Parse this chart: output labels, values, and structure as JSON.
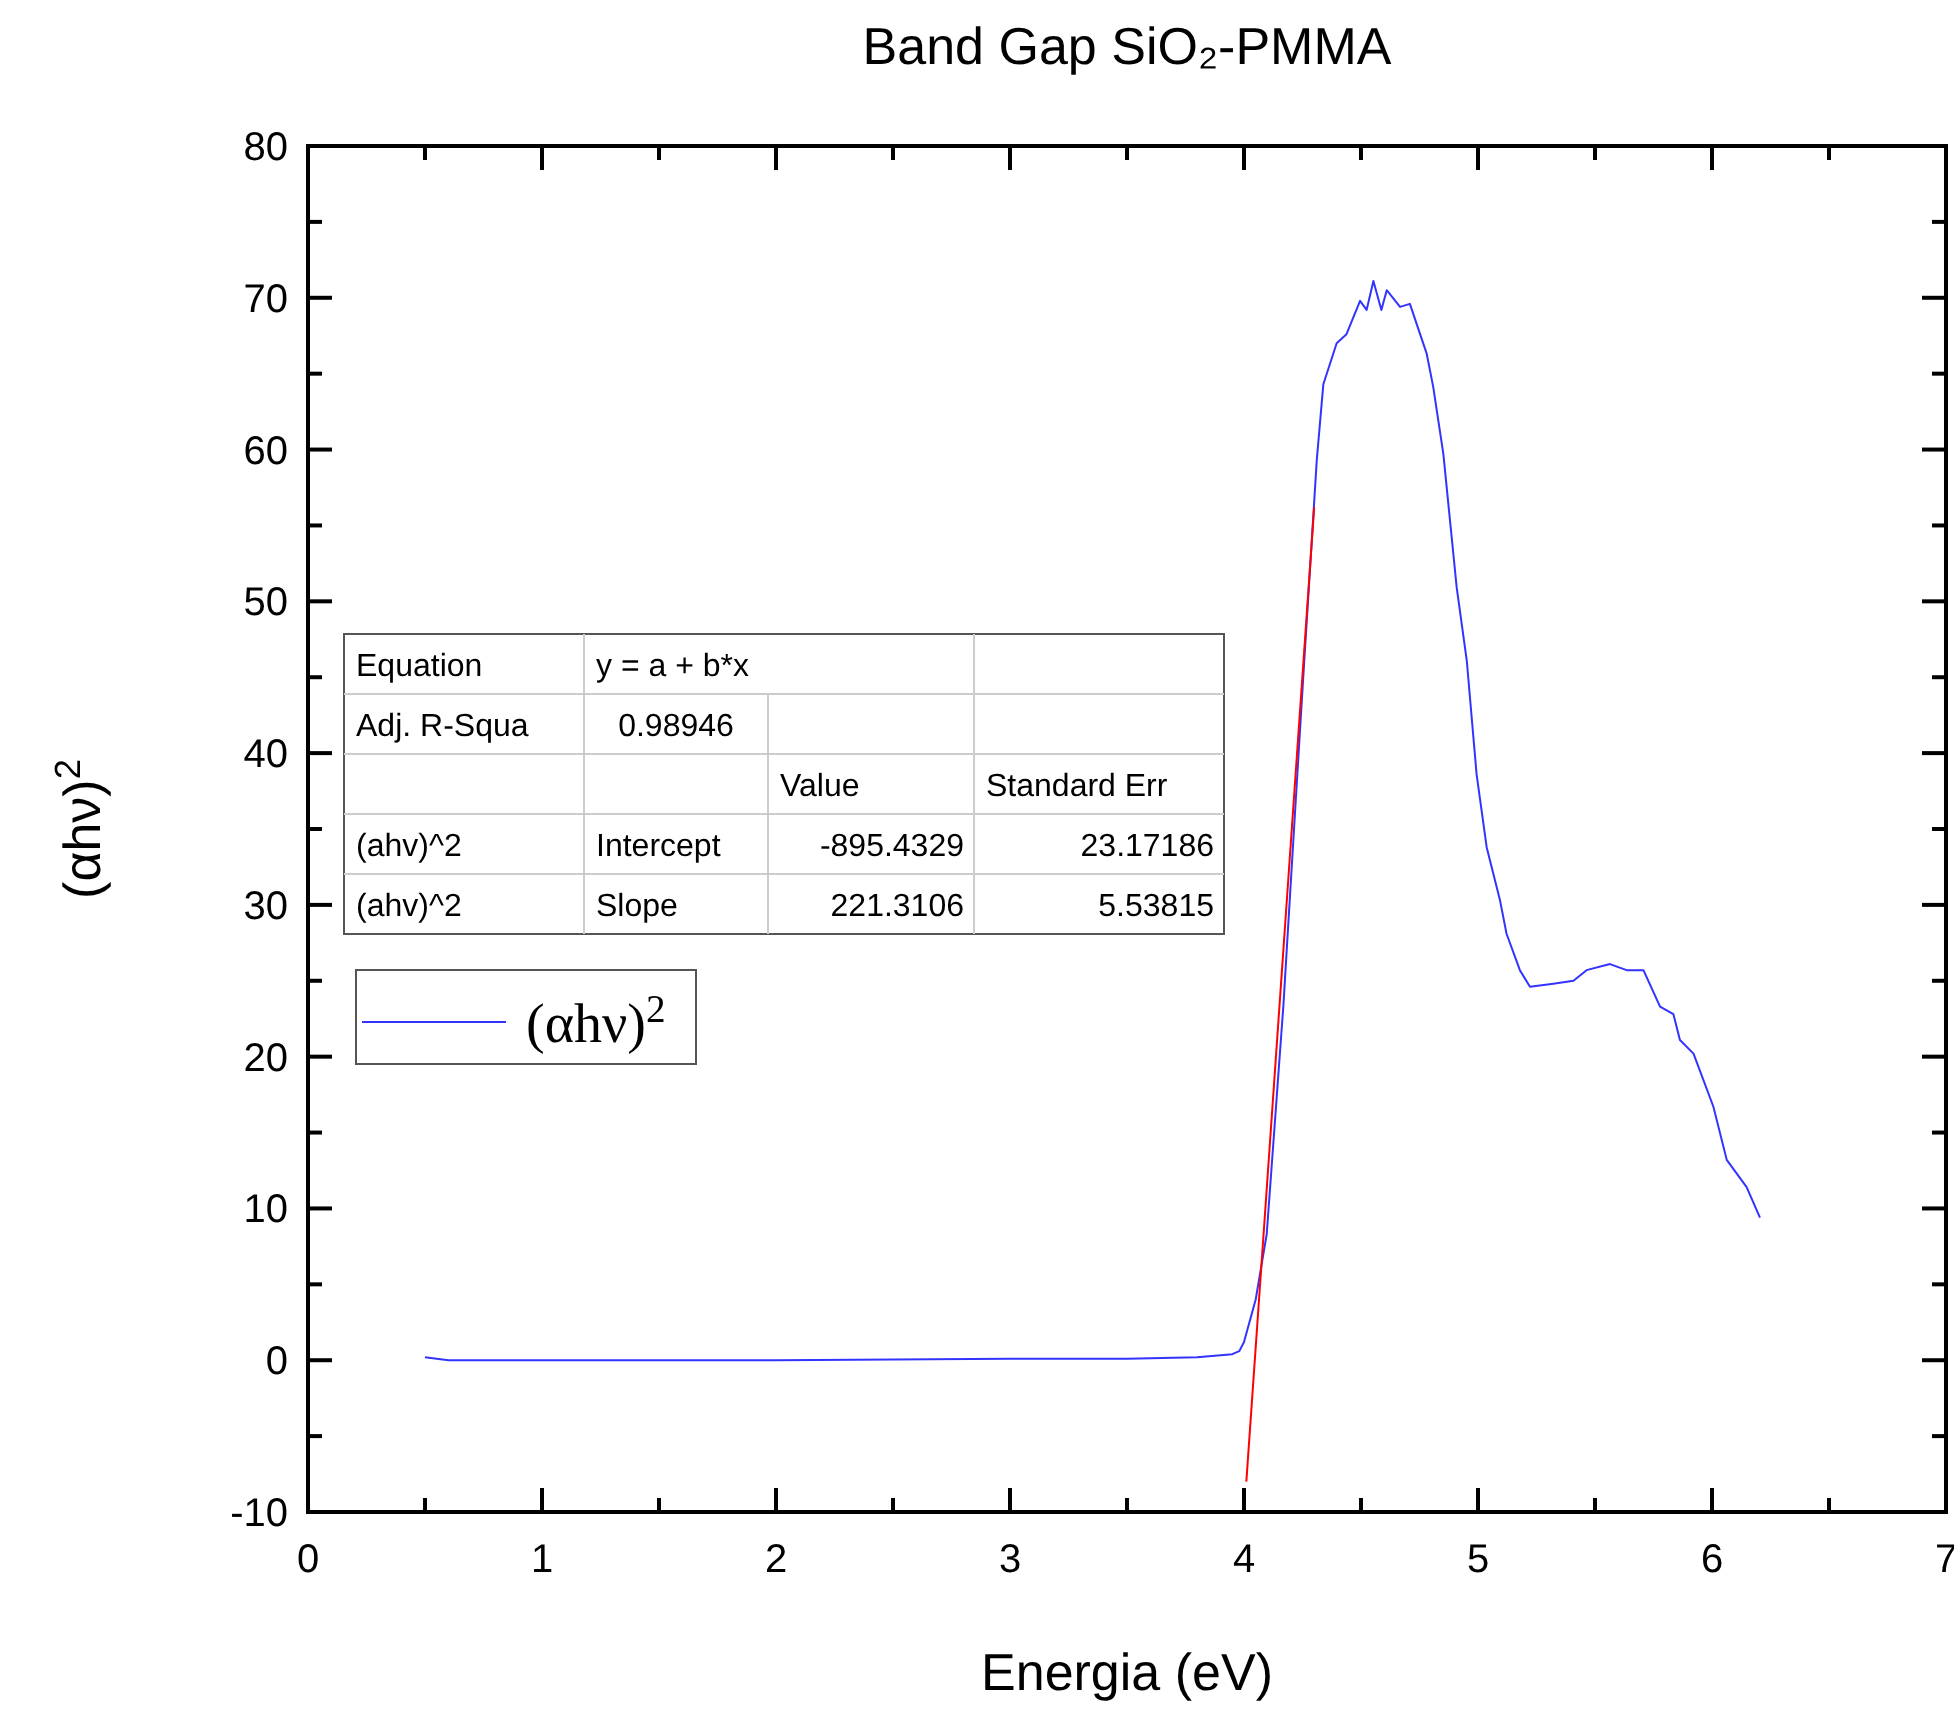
{
  "chart_data": {
    "type": "line",
    "title": "Band Gap SiO₂-PMMA",
    "xlabel": "Energia (eV)",
    "ylabel": "(αhν)$^{2}$",
    "xlim": [
      0,
      7
    ],
    "xticks": [
      0,
      1,
      2,
      3,
      4,
      5,
      6,
      7
    ],
    "ylim": [
      -10,
      80
    ],
    "yticks": [
      -10,
      0,
      10,
      20,
      30,
      40,
      50,
      60,
      70,
      80
    ],
    "grid": false,
    "legend": "left",
    "marker": "none",
    "line_style": "solid",
    "annotations": [
      "Equation",
      "y = a + b*x",
      "Adj. R-Squa",
      "0.98946",
      "Value",
      "Standard Err",
      "(ahv)^2",
      "Intercept",
      "-895.4329",
      "23.17186",
      "(ahv)^2",
      "Slope",
      "221.3106",
      "5.53815"
    ],
    "series": [
      {
        "name": "(αhν)$^{2}$",
        "color": "#3333ff",
        "x": [
          0.5,
          0.6,
          1,
          2,
          3,
          3.5,
          3.8,
          3.95,
          3.98,
          4.0,
          4.05,
          4.097,
          4.168,
          4.211,
          4.254,
          4.311,
          4.339,
          4.396,
          4.438,
          4.496,
          4.524,
          4.553,
          4.587,
          4.61,
          4.667,
          4.709,
          4.781,
          4.809,
          4.852,
          4.909,
          4.952,
          4.994,
          5.037,
          5.094,
          5.122,
          5.179,
          5.222,
          5.322,
          5.408,
          5.464,
          5.564,
          5.635,
          5.707,
          5.778,
          5.835,
          5.863,
          5.921,
          6.006,
          6.063,
          6.148,
          6.205
        ],
        "values": [
          0.2,
          0,
          0,
          0,
          0.1,
          0.1,
          0.2,
          0.4,
          0.6,
          1.2,
          4.0,
          8.3,
          23.3,
          34.3,
          45.2,
          59.3,
          64.3,
          67.0,
          67.6,
          69.8,
          69.2,
          71.1,
          69.2,
          70.5,
          69.4,
          69.6,
          66.3,
          64.1,
          59.7,
          50.9,
          46.1,
          38.6,
          33.8,
          30.3,
          28.1,
          25.7,
          24.6,
          24.8,
          25.0,
          25.7,
          26.1,
          25.7,
          25.7,
          23.3,
          22.8,
          21.1,
          20.2,
          16.7,
          13.2,
          11.4,
          9.4
        ]
      },
      {
        "type": "line",
        "color": "#ff0000",
        "x": [
          4.01,
          4.3
        ],
        "values": [
          -8,
          56.2
        ]
      }
    ]
  }
}
